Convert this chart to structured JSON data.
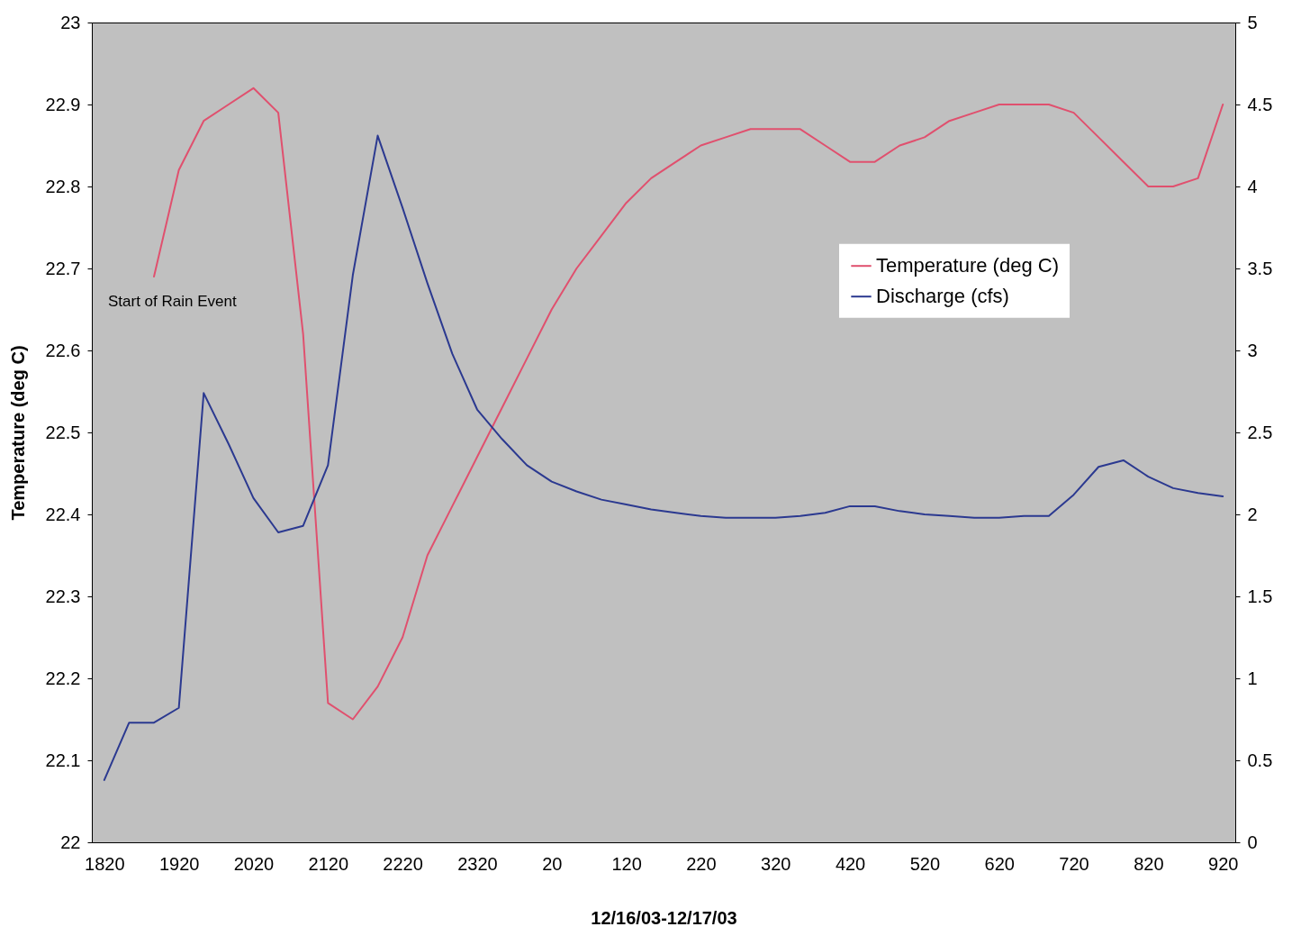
{
  "chart_data": {
    "type": "line",
    "xlabel": "12/16/03-12/17/03",
    "ylabel": "Temperature (deg C)",
    "categories": [
      "1820",
      null,
      null,
      "1920",
      null,
      null,
      "2020",
      null,
      null,
      "2120",
      null,
      null,
      "2220",
      null,
      null,
      "2320",
      null,
      null,
      "20",
      null,
      null,
      "120",
      null,
      null,
      "220",
      null,
      null,
      "320",
      null,
      null,
      "420",
      null,
      null,
      "520",
      null,
      null,
      "620",
      null,
      null,
      "720",
      null,
      null,
      "820",
      null,
      null,
      "920"
    ],
    "series": [
      {
        "name": "Temperature (deg C)",
        "color": "#e0506e",
        "values": [
          null,
          null,
          22.69,
          22.82,
          22.88,
          22.9,
          22.92,
          22.89,
          22.62,
          22.17,
          22.15,
          22.19,
          22.25,
          22.35,
          22.41,
          22.47,
          22.53,
          22.59,
          22.65,
          22.7,
          22.74,
          22.78,
          22.81,
          22.83,
          22.85,
          22.86,
          22.87,
          22.87,
          22.87,
          22.85,
          22.83,
          22.83,
          22.85,
          22.86,
          22.88,
          22.89,
          22.9,
          22.9,
          22.9,
          22.89,
          22.86,
          22.83,
          22.8,
          22.8,
          22.81,
          22.9
        ]
      },
      {
        "name": "Discharge (cfs)",
        "color": "#2b3990",
        "axis": "y2",
        "values": [
          0.38,
          0.73,
          0.73,
          0.82,
          2.74,
          2.43,
          2.1,
          1.89,
          1.93,
          2.3,
          3.46,
          4.31,
          3.87,
          3.41,
          2.98,
          2.64,
          2.46,
          2.3,
          2.2,
          2.14,
          2.09,
          2.06,
          2.03,
          2.01,
          1.99,
          1.98,
          1.98,
          1.98,
          1.99,
          2.01,
          2.05,
          2.05,
          2.02,
          2.0,
          1.99,
          1.98,
          1.98,
          1.99,
          1.99,
          2.12,
          2.29,
          2.33,
          2.23,
          2.16,
          2.13,
          2.11
        ]
      }
    ],
    "ylim": [
      22,
      23
    ],
    "yticks": [
      22,
      22.1,
      22.2,
      22.3,
      22.4,
      22.5,
      22.6,
      22.7,
      22.8,
      22.9,
      23
    ],
    "y2lim": [
      0,
      5
    ],
    "y2ticks": [
      0,
      0.5,
      1,
      1.5,
      2,
      2.5,
      3,
      3.5,
      4,
      4.5,
      5
    ],
    "annotations": [
      "Start of Rain Event"
    ],
    "legend": "right",
    "grid": false
  }
}
